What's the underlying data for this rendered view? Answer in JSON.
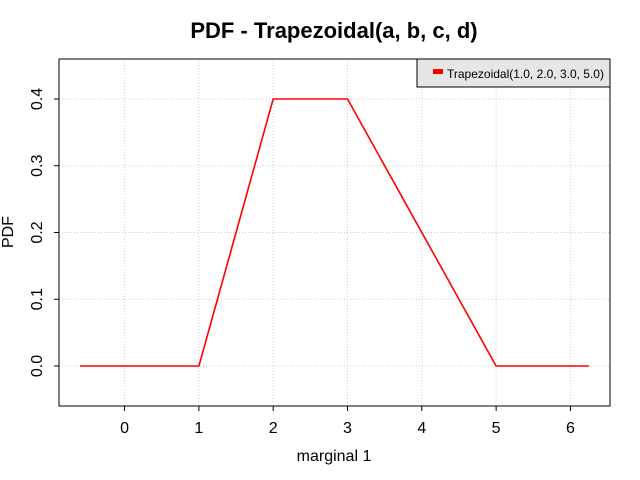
{
  "chart_data": {
    "type": "line",
    "title": "PDF - Trapezoidal(a, b, c, d)",
    "xlabel": "marginal 1",
    "ylabel": "PDF",
    "xlim": [
      -0.6,
      6.25
    ],
    "ylim": [
      0.0,
      0.4
    ],
    "xticks": [
      0,
      1,
      2,
      3,
      4,
      5,
      6
    ],
    "yticks": [
      0.0,
      0.1,
      0.2,
      0.3,
      0.4
    ],
    "ytick_labels": [
      "0.0",
      "0.1",
      "0.2",
      "0.3",
      "0.4"
    ],
    "grid": true,
    "legend_position": "top-right",
    "series": [
      {
        "name": "Trapezoidal(1.0, 2.0, 3.0, 5.0)",
        "color": "#ff0000",
        "x": [
          -0.6,
          1.0,
          2.0,
          3.0,
          5.0,
          6.25
        ],
        "y": [
          0.0,
          0.0,
          0.4,
          0.4,
          0.0,
          0.0
        ]
      }
    ]
  }
}
